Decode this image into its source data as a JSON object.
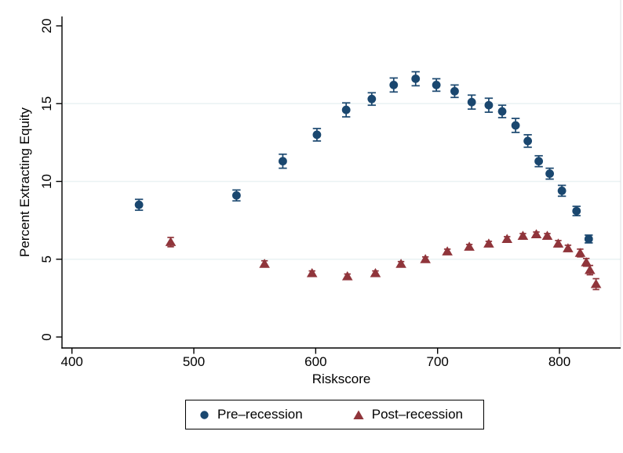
{
  "figure": {
    "background": "#ffffff",
    "text_color": "#000000",
    "axis_color": "#000000"
  },
  "chart_data": {
    "type": "scatter",
    "title": "",
    "xlabel": "Riskscore",
    "ylabel": "Percent Extracting Equity",
    "xticks": [
      400,
      500,
      600,
      700,
      800
    ],
    "yticks": [
      0,
      5,
      10,
      15,
      20
    ],
    "xlim": [
      392,
      850
    ],
    "ylim": [
      0,
      20.6
    ],
    "grid": {
      "y_values": [
        5,
        10,
        15
      ],
      "color": "#eaf2f3"
    },
    "legend": {
      "position": "bottom-center",
      "border_color": "#000000"
    },
    "point_format": [
      "riskscore",
      "percent_extracting_equity",
      "ci_halfwidth"
    ],
    "series": [
      {
        "name": "Pre–recession",
        "marker": "circle",
        "color": "#1a476f",
        "points": [
          [
            455,
            8.5,
            0.35
          ],
          [
            535,
            9.1,
            0.35
          ],
          [
            573,
            11.3,
            0.45
          ],
          [
            601,
            13.0,
            0.4
          ],
          [
            625,
            14.6,
            0.45
          ],
          [
            646,
            15.3,
            0.4
          ],
          [
            664,
            16.2,
            0.45
          ],
          [
            682,
            16.6,
            0.45
          ],
          [
            699,
            16.2,
            0.4
          ],
          [
            714,
            15.8,
            0.4
          ],
          [
            728,
            15.1,
            0.45
          ],
          [
            742,
            14.9,
            0.45
          ],
          [
            753,
            14.5,
            0.4
          ],
          [
            764,
            13.6,
            0.45
          ],
          [
            774,
            12.6,
            0.4
          ],
          [
            783,
            11.3,
            0.35
          ],
          [
            792,
            10.5,
            0.35
          ],
          [
            802,
            9.4,
            0.35
          ],
          [
            814,
            8.1,
            0.3
          ],
          [
            824,
            6.3,
            0.25
          ]
        ]
      },
      {
        "name": "Post–recession",
        "marker": "triangle",
        "color": "#90353b",
        "points": [
          [
            481,
            6.1,
            0.3
          ],
          [
            558,
            4.7,
            0.2
          ],
          [
            597,
            4.1,
            0.15
          ],
          [
            626,
            3.9,
            0.15
          ],
          [
            649,
            4.1,
            0.15
          ],
          [
            670,
            4.7,
            0.15
          ],
          [
            690,
            5.0,
            0.15
          ],
          [
            708,
            5.5,
            0.15
          ],
          [
            726,
            5.8,
            0.15
          ],
          [
            742,
            6.0,
            0.15
          ],
          [
            757,
            6.3,
            0.15
          ],
          [
            770,
            6.5,
            0.15
          ],
          [
            781,
            6.6,
            0.15
          ],
          [
            790,
            6.5,
            0.15
          ],
          [
            799,
            6.0,
            0.2
          ],
          [
            807,
            5.7,
            0.2
          ],
          [
            817,
            5.4,
            0.25
          ],
          [
            822,
            4.8,
            0.25
          ],
          [
            825,
            4.3,
            0.3
          ],
          [
            830,
            3.4,
            0.35
          ]
        ]
      }
    ]
  }
}
